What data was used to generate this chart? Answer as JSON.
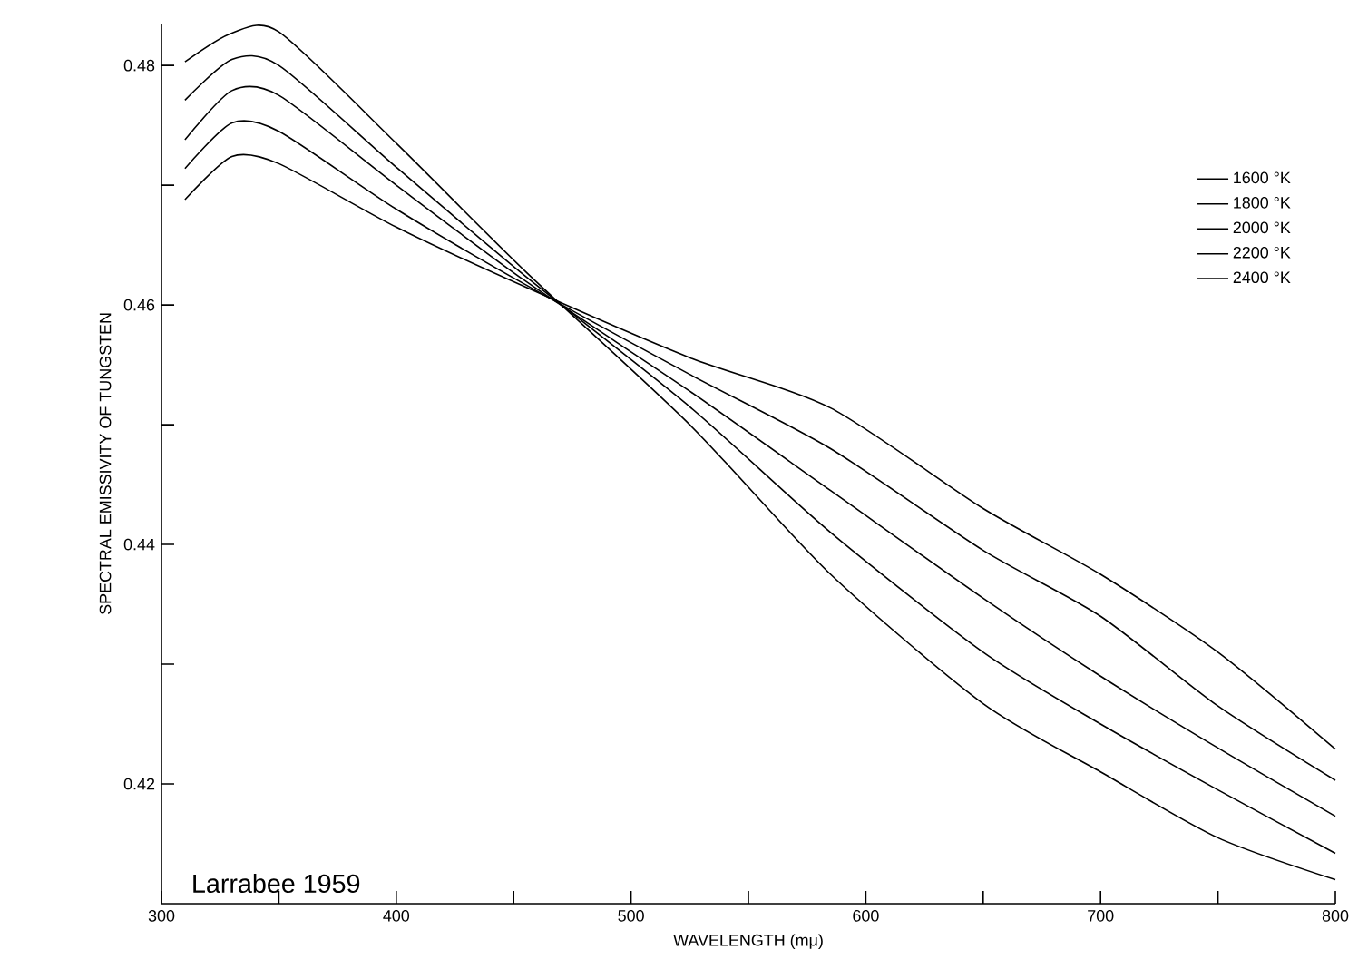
{
  "chart_data": {
    "type": "line",
    "xlabel": "WAVELENGTH (mμ)",
    "ylabel": "SPECTRAL EMISSIVITY OF TUNGSTEN",
    "annotations": [
      "Larrabee 1959"
    ],
    "x": [
      310,
      330,
      350,
      400,
      455,
      525,
      585,
      650,
      700,
      750,
      800
    ],
    "series": [
      {
        "name": "1600 °K",
        "color": "#000000",
        "values": [
          0.4688,
          0.4724,
          0.4718,
          0.4665,
          0.4615,
          0.4556,
          0.4514,
          0.443,
          0.4375,
          0.431,
          0.4229
        ]
      },
      {
        "name": "1800 °K",
        "color": "#000000",
        "values": [
          0.4714,
          0.4752,
          0.4745,
          0.468,
          0.4617,
          0.4542,
          0.448,
          0.4395,
          0.434,
          0.4265,
          0.4203
        ]
      },
      {
        "name": "2000 °K",
        "color": "#000000",
        "values": [
          0.4738,
          0.4779,
          0.4775,
          0.47,
          0.462,
          0.4528,
          0.4445,
          0.4355,
          0.429,
          0.423,
          0.4173
        ]
      },
      {
        "name": "2200 °K",
        "color": "#000000",
        "values": [
          0.4771,
          0.4805,
          0.48,
          0.4715,
          0.4624,
          0.4515,
          0.441,
          0.431,
          0.425,
          0.4195,
          0.4142
        ]
      },
      {
        "name": "2400 °K",
        "color": "#000000",
        "values": [
          0.4803,
          0.4827,
          0.4828,
          0.4735,
          0.4628,
          0.45,
          0.4375,
          0.4267,
          0.421,
          0.4155,
          0.412
        ]
      }
    ],
    "xlim": [
      300,
      800
    ],
    "ylim": [
      0.41,
      0.4835
    ],
    "xticks": [
      300,
      {
        "value": 350,
        "label": null
      },
      400,
      {
        "value": 450,
        "label": null
      },
      500,
      {
        "value": 550,
        "label": null
      },
      600,
      {
        "value": 650,
        "label": null
      },
      700,
      {
        "value": 750,
        "label": null
      },
      800
    ],
    "yticks": [
      0.42,
      {
        "value": 0.43,
        "label": null
      },
      0.44,
      {
        "value": 0.45,
        "label": null
      },
      0.46,
      {
        "value": 0.47,
        "label": null
      },
      0.48
    ],
    "grid": false,
    "legend": "top right",
    "marker": "none",
    "line_style": "solid"
  }
}
